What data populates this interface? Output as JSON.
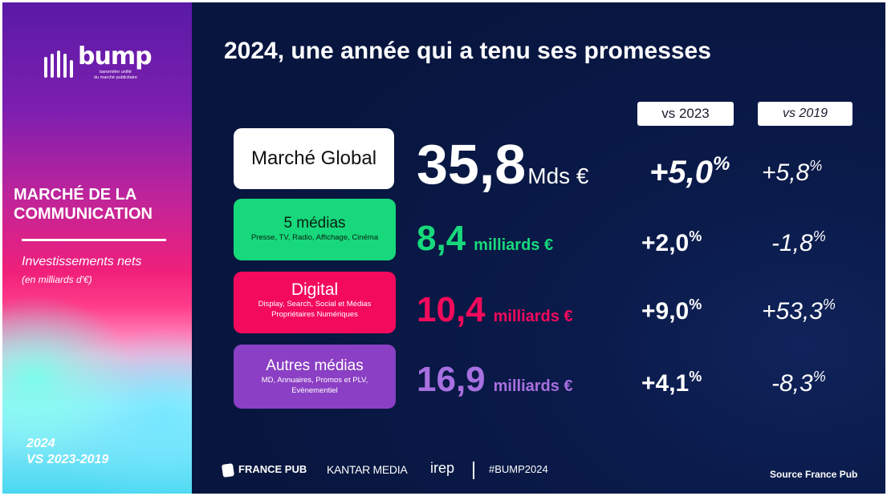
{
  "sidebar": {
    "logo_word": "bump",
    "logo_tagline_1": "baromètre unifié",
    "logo_tagline_2": "du marché publicitaire",
    "title_1": "MARCHÉ DE LA",
    "title_2": "COMMUNICATION",
    "subtitle": "Investissements nets",
    "subtitle_note": "(en milliards d'€)",
    "year": "2024",
    "period": "VS 2023-2019"
  },
  "main": {
    "title": "2024, une année qui a tenu ses promesses",
    "col_headers": [
      "vs 2023",
      "vs 2019"
    ],
    "rows": [
      {
        "label": "Marché Global",
        "sub": "",
        "value": "35,8",
        "unit": "Mds €",
        "vs2023": "+5,0",
        "vs2019": "+5,8",
        "pct_sign": "%"
      },
      {
        "label": "5 médias",
        "sub": "Presse, TV, Radio, Affichage, Cinéma",
        "value": "8,4",
        "unit": "milliards €",
        "vs2023": "+2,0",
        "vs2019": "-1,8",
        "pct_sign": "%"
      },
      {
        "label": "Digital",
        "sub": "Display, Search, Social et Médias Propriétaires Numériques",
        "sub_line1": "Display, Search, Social et Médias",
        "sub_line2": "Propriétaires Numériques",
        "value": "10,4",
        "unit": "milliards €",
        "vs2023": "+9,0",
        "vs2019": "+53,3",
        "pct_sign": "%"
      },
      {
        "label": "Autres médias",
        "sub_line1": "MD, Annuaires, Promos et PLV,",
        "sub_line2": "Evènementiel",
        "value": "16,9",
        "unit": "milliards €",
        "vs2023": "+4,1",
        "vs2019": "-8,3",
        "pct_sign": "%"
      }
    ],
    "colors": {
      "green": "#17d97b",
      "pink": "#f30a5c",
      "purple": "#8b3fc4",
      "navy": "#0a1a4a"
    }
  },
  "footer": {
    "france_pub": "FRANCE PUB",
    "kantar": "KANTAR MEDIA",
    "irep": "irep",
    "hashtag": "#BUMP2024",
    "source": "Source France Pub"
  }
}
